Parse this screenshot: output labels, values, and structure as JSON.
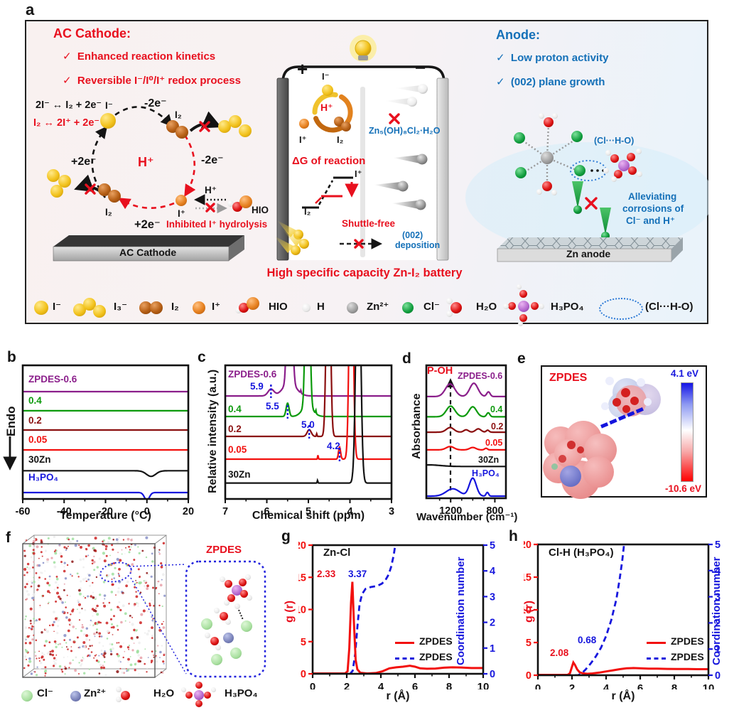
{
  "figure": {
    "panel_a": {
      "label": "a",
      "check": "✓",
      "cathode_title": "AC Cathode:",
      "cathode_point1": "Enhanced reaction kinetics",
      "cathode_point2": "Reversible I⁻/I⁰/I⁺ redox process",
      "eq_black": "2I⁻ ↔ I₂ + 2e⁻",
      "eq_red": "I₂ ↔ 2I⁺ + 2e⁻",
      "minus2e_top": "-2e⁻",
      "minus2e_right": "-2e⁻",
      "plus2e_left": "+2e⁻",
      "plus2e_bottom": "+2e⁻",
      "h_plus_center": "H⁺",
      "i_minus": "I⁻",
      "i2_top": "I₂",
      "i2_bottom": "I₂",
      "i_plus": "I⁺",
      "h_plus_small": "H⁺",
      "hio": "HIO",
      "inhibited": "Inhibited I⁺ hydrolysis",
      "cathode_bar": "AC Cathode",
      "battery": {
        "plus": "+",
        "minus": "−",
        "i_minus": "I⁻",
        "h_plus": "H⁺",
        "i_plus": "I⁺",
        "i2": "I₂",
        "zn_salt": "Zn₅(OH)₈Cl₂·H₂O",
        "dg": "ΔG of reaction",
        "dg_iplus": "I⁺",
        "dg_i2": "I₂",
        "shuttle": "Shuttle-free",
        "dep1": "(002)",
        "dep2": "deposition",
        "caption": "High specific capacity Zn-I₂ battery"
      },
      "anode_title": "Anode:",
      "anode_point1": "Low proton activity",
      "anode_point2": "(002) plane growth",
      "cl_h_o": "(Cl···H-O)",
      "allev1": "Alleviating",
      "allev2": "corrosions of",
      "allev3": "Cl⁻ and H⁺",
      "anode_bar": "Zn anode",
      "legend": [
        {
          "label": "I⁻"
        },
        {
          "label": "I₃⁻"
        },
        {
          "label": "I₂"
        },
        {
          "label": "I⁺"
        },
        {
          "label": "HIO"
        },
        {
          "label": "H"
        },
        {
          "label": "Zn²⁺"
        },
        {
          "label": "Cl⁻"
        },
        {
          "label": "H₂O"
        },
        {
          "label": "H₃PO₄"
        },
        {
          "label": "(Cl···H-O)"
        }
      ]
    },
    "panel_b": {
      "label": "b",
      "xlabel": "Temperature (°C)",
      "ylabel": "Endo",
      "chart": {
        "type": "line",
        "xrange": [
          -60,
          20
        ],
        "xticks": [
          "-60",
          "-40",
          "-20",
          "0",
          "20"
        ],
        "series": [
          {
            "label": "ZPDES-0.6",
            "color": "#8b1f8b",
            "offset": 0.197,
            "peaks": []
          },
          {
            "label": "0.4",
            "color": "#0c9a0c",
            "offset": 0.34,
            "peaks": []
          },
          {
            "label": "0.2",
            "color": "#8b0f0f",
            "offset": 0.484,
            "peaks": []
          },
          {
            "label": "0.05",
            "color": "#f2100e",
            "offset": 0.633,
            "peaks": []
          },
          {
            "label": "30Zn",
            "color": "#141414",
            "offset": 0.789,
            "peaks": [
              {
                "c": 2,
                "h": -0.042,
                "w": 3.2
              }
            ]
          },
          {
            "label": "H₃PO₄",
            "color": "#1515dd",
            "offset": 0.952,
            "peaks": [
              {
                "c": 0,
                "h": -0.058,
                "w": 1.7
              }
            ]
          }
        ]
      }
    },
    "panel_c": {
      "label": "c",
      "xlabel": "Chemical shift (ppm)",
      "ylabel": "Relative intensity (a.u.)",
      "chart": {
        "type": "line",
        "xrange": [
          7,
          3
        ],
        "xticks": [
          "7",
          "6",
          "5",
          "4",
          "3"
        ],
        "series": [
          {
            "label": "ZPDES-0.6",
            "color": "#8b1f8b",
            "offset": 0.229,
            "peaks": [
              {
                "c": 5.45,
                "h": 2,
                "w": 0.065
              },
              {
                "c": 5.45,
                "h": 0.1,
                "w": 0.22
              },
              {
                "c": 5.9,
                "h": 0.05,
                "w": 0.1
              },
              {
                "c": 5.18,
                "h": 0.02,
                "w": 0.012
              }
            ]
          },
          {
            "label": "0.4",
            "color": "#0c9a0c",
            "offset": 0.383,
            "peaks": [
              {
                "c": 5.02,
                "h": 2,
                "w": 0.06
              },
              {
                "c": 5.02,
                "h": 0.08,
                "w": 0.18
              },
              {
                "c": 5.5,
                "h": 0.1,
                "w": 0.05
              },
              {
                "c": 4.82,
                "h": 0.025,
                "w": 0.012
              }
            ]
          },
          {
            "label": "0.2",
            "color": "#8b0f0f",
            "offset": 0.532,
            "peaks": [
              {
                "c": 4.52,
                "h": 2,
                "w": 0.06
              },
              {
                "c": 4.98,
                "h": 0.05,
                "w": 0.07
              },
              {
                "c": 4.8,
                "h": 0.02,
                "w": 0.012
              }
            ]
          },
          {
            "label": "0.05",
            "color": "#f2100e",
            "offset": 0.702,
            "peaks": [
              {
                "c": 3.97,
                "h": 2,
                "w": 0.062
              },
              {
                "c": 4.25,
                "h": 0.09,
                "w": 0.035
              },
              {
                "c": 4.77,
                "h": 0.03,
                "w": 0.012
              }
            ]
          },
          {
            "label": "30Zn",
            "color": "#141414",
            "offset": 0.881,
            "peaks": [
              {
                "c": 3.8,
                "h": 2,
                "w": 0.075
              },
              {
                "c": 4.78,
                "h": 0.02,
                "w": 0.012
              }
            ]
          }
        ],
        "annotations": [
          {
            "text": "5.9",
            "x": 5.9,
            "series": 0
          },
          {
            "text": "5.5",
            "x": 5.5,
            "series": 1
          },
          {
            "text": "5.0",
            "x": 4.98,
            "series": 2
          },
          {
            "text": "4.2",
            "x": 4.25,
            "series": 3
          }
        ]
      }
    },
    "panel_d": {
      "label": "d",
      "xlabel": "Wavenumber (cm⁻¹)",
      "ylabel": "Absorbance",
      "peak_label": "P-OH",
      "chart": {
        "type": "line",
        "xrange": [
          1420,
          700
        ],
        "xticks": [
          "1200",
          "800"
        ],
        "series": [
          {
            "label": "ZPDES-0.6",
            "color": "#8b1f8b",
            "offset": 0.235,
            "peaks": [
              {
                "c": 1205,
                "h": 0.095,
                "w": 60
              },
              {
                "c": 990,
                "h": 0.1,
                "w": 52
              },
              {
                "c": 858,
                "h": 0.035,
                "w": 22
              }
            ]
          },
          {
            "label": "0.4",
            "color": "#0c9a0c",
            "offset": 0.387,
            "peaks": [
              {
                "c": 1200,
                "h": 0.08,
                "w": 55
              },
              {
                "c": 1000,
                "h": 0.075,
                "w": 48
              },
              {
                "c": 860,
                "h": 0.03,
                "w": 20
              }
            ]
          },
          {
            "label": "0.2",
            "color": "#8b0f0f",
            "offset": 0.503,
            "peaks": [
              {
                "c": 1205,
                "h": 0.035,
                "w": 48
              },
              {
                "c": 1060,
                "h": 0.018,
                "w": 30
              },
              {
                "c": 950,
                "h": 0.025,
                "w": 35
              },
              {
                "c": 865,
                "h": 0.015,
                "w": 18
              }
            ]
          },
          {
            "label": "0.05",
            "color": "#f2100e",
            "offset": 0.636,
            "peaks": [
              {
                "c": 1205,
                "h": 0.025,
                "w": 50
              },
              {
                "c": 1000,
                "h": 0.018,
                "w": 40
              },
              {
                "c": 880,
                "h": 0.012,
                "w": 18
              }
            ]
          },
          {
            "label": "30Zn",
            "color": "#141414",
            "offset": 0.761,
            "peaks": [
              {
                "c": 1400,
                "h": 0.012,
                "w": 150
              }
            ]
          },
          {
            "label": "H₃PO₄",
            "color": "#1515dd",
            "offset": 0.984,
            "peaks": [
              {
                "c": 1180,
                "h": 0.055,
                "w": 85
              },
              {
                "c": 1000,
                "h": 0.135,
                "w": 45
              },
              {
                "c": 868,
                "h": 0.028,
                "w": 16
              }
            ]
          }
        ]
      }
    },
    "panel_e": {
      "label": "e",
      "title": "ZPDES",
      "cbar_max": "4.1 eV",
      "cbar_min": "-10.6 eV"
    },
    "panel_f": {
      "label": "f",
      "callout": "ZPDES",
      "legend": [
        {
          "label": "Cl⁻"
        },
        {
          "label": "Zn²⁺"
        },
        {
          "label": "H₂O"
        },
        {
          "label": "H₃PO₄"
        }
      ]
    },
    "panel_g": {
      "label": "g",
      "title": "Zn-Cl",
      "xlabel": "r (Å)",
      "ylabel": "g (r)",
      "y2label": "Coordination number",
      "ann_peak": "2.33",
      "ann_cn": "3.37",
      "legend_rdf": "ZPDES",
      "legend_cn": "ZPDES",
      "chart": {
        "type": "line",
        "xrange": [
          0,
          10
        ],
        "yrange": [
          0,
          20
        ],
        "y2range": [
          0,
          5
        ],
        "xticks": [
          "0",
          "2",
          "4",
          "6",
          "8",
          "10"
        ],
        "yticks": [
          "0",
          "5",
          "10",
          "15",
          "20"
        ],
        "y2ticks": [
          "0",
          "1",
          "2",
          "3",
          "4",
          "5"
        ],
        "g_r": [
          [
            0,
            0.05
          ],
          [
            1.9,
            0.05
          ],
          [
            2.05,
            0.4
          ],
          [
            2.15,
            4
          ],
          [
            2.25,
            11
          ],
          [
            2.33,
            14.3
          ],
          [
            2.42,
            8
          ],
          [
            2.52,
            2.2
          ],
          [
            2.62,
            0.7
          ],
          [
            2.8,
            0.15
          ],
          [
            3.2,
            0.05
          ],
          [
            3.7,
            0.12
          ],
          [
            4.1,
            0.4
          ],
          [
            4.5,
            0.85
          ],
          [
            4.9,
            1.0
          ],
          [
            5.3,
            1.1
          ],
          [
            5.7,
            1.25
          ],
          [
            6.0,
            1.1
          ],
          [
            6.3,
            0.85
          ],
          [
            6.7,
            0.78
          ],
          [
            7.2,
            0.82
          ],
          [
            7.7,
            0.95
          ],
          [
            8.2,
            1.0
          ],
          [
            8.7,
            0.98
          ],
          [
            9.3,
            0.9
          ],
          [
            10,
            0.9
          ]
        ],
        "cn": [
          [
            0,
            0
          ],
          [
            2.2,
            0
          ],
          [
            2.35,
            0.12
          ],
          [
            2.5,
            0.8
          ],
          [
            2.62,
            1.8
          ],
          [
            2.75,
            2.7
          ],
          [
            2.9,
            3.1
          ],
          [
            3.1,
            3.3
          ],
          [
            3.4,
            3.37
          ],
          [
            3.8,
            3.42
          ],
          [
            4.05,
            3.5
          ],
          [
            4.25,
            3.62
          ],
          [
            4.45,
            3.85
          ],
          [
            4.6,
            4.15
          ],
          [
            4.75,
            4.6
          ],
          [
            4.88,
            5.15
          ]
        ]
      }
    },
    "panel_h": {
      "label": "h",
      "title": "Cl-H (H₃PO₄)",
      "xlabel": "r (Å)",
      "ylabel": "g (r)",
      "y2label": "Coordination number",
      "ann_peak": "2.08",
      "ann_cn": "0.68",
      "legend_rdf": "ZPDES",
      "legend_cn": "ZPDES",
      "chart": {
        "type": "line",
        "xrange": [
          0,
          10
        ],
        "yrange": [
          0,
          20
        ],
        "y2range": [
          0,
          5
        ],
        "xticks": [
          "0",
          "2",
          "4",
          "6",
          "8",
          "10"
        ],
        "yticks": [
          "0",
          "5",
          "10",
          "15",
          "20"
        ],
        "y2ticks": [
          "0",
          "1",
          "2",
          "3",
          "4",
          "5"
        ],
        "g_r": [
          [
            0,
            0.05
          ],
          [
            1.75,
            0.05
          ],
          [
            1.88,
            0.3
          ],
          [
            2.0,
            1.3
          ],
          [
            2.08,
            1.95
          ],
          [
            2.18,
            1.55
          ],
          [
            2.3,
            0.9
          ],
          [
            2.45,
            0.45
          ],
          [
            2.65,
            0.28
          ],
          [
            2.9,
            0.22
          ],
          [
            3.2,
            0.27
          ],
          [
            3.6,
            0.4
          ],
          [
            4.0,
            0.58
          ],
          [
            4.4,
            0.75
          ],
          [
            4.8,
            0.92
          ],
          [
            5.2,
            1.05
          ],
          [
            5.6,
            1.1
          ],
          [
            6.0,
            1.07
          ],
          [
            6.5,
            1.0
          ],
          [
            7.0,
            1.0
          ],
          [
            7.6,
            0.97
          ],
          [
            8.2,
            0.95
          ],
          [
            8.8,
            0.95
          ],
          [
            9.4,
            0.92
          ],
          [
            10,
            0.92
          ]
        ],
        "cn": [
          [
            0,
            0
          ],
          [
            2.35,
            0
          ],
          [
            2.55,
            0.06
          ],
          [
            2.8,
            0.22
          ],
          [
            3.1,
            0.45
          ],
          [
            3.4,
            0.72
          ],
          [
            3.7,
            1.05
          ],
          [
            4.0,
            1.5
          ],
          [
            4.3,
            2.1
          ],
          [
            4.6,
            2.9
          ],
          [
            4.8,
            3.7
          ],
          [
            4.95,
            4.4
          ],
          [
            5.08,
            5.15
          ]
        ]
      }
    }
  },
  "chart_data": [
    {
      "id": "b",
      "type": "line",
      "xlabel": "Temperature (°C)",
      "ylabel": "Endo",
      "xrange": [
        -60,
        20
      ],
      "series": [
        "ZPDES-0.6",
        "0.4",
        "0.2",
        "0.05",
        "30Zn",
        "H₃PO₄"
      ],
      "note": "flat DSC traces; endothermic dips only for 30Zn (~2 °C) and H₃PO₄ (~0 °C)"
    },
    {
      "id": "c",
      "type": "line",
      "xlabel": "Chemical shift (ppm)",
      "ylabel": "Relative intensity (a.u.)",
      "xrange": [
        7,
        3
      ],
      "series": [
        "ZPDES-0.6",
        "0.4",
        "0.2",
        "0.05",
        "30Zn"
      ],
      "main_peaks_ppm": [
        5.45,
        5.02,
        4.52,
        3.97,
        3.8
      ],
      "shoulder_peaks_ppm": [
        5.9,
        5.5,
        5.0,
        4.2
      ]
    },
    {
      "id": "d",
      "type": "line",
      "xlabel": "Wavenumber (cm⁻¹)",
      "ylabel": "Absorbance",
      "xrange": [
        1420,
        700
      ],
      "series": [
        "ZPDES-0.6",
        "0.4",
        "0.2",
        "0.05",
        "30Zn",
        "H₃PO₄"
      ],
      "marked_band": "P-OH at ~1200 cm⁻¹"
    },
    {
      "id": "e",
      "type": "heatmap",
      "title": "ZPDES ESP map",
      "scale_max_eV": 4.1,
      "scale_min_eV": -10.6
    },
    {
      "id": "g",
      "type": "line",
      "title": "Zn-Cl",
      "xlabel": "r (Å)",
      "ylabel": "g (r)",
      "y2label": "Coordination number",
      "first_peak": {
        "r": 2.33,
        "g": 14.3
      },
      "cn_plateau": 3.37,
      "legend": [
        "ZPDES",
        "ZPDES"
      ]
    },
    {
      "id": "h",
      "type": "line",
      "title": "Cl-H (H₃PO₄)",
      "xlabel": "r (Å)",
      "ylabel": "g (r)",
      "y2label": "Coordination number",
      "first_peak": {
        "r": 2.08,
        "g": 2.0
      },
      "cn_value": 0.68,
      "legend": [
        "ZPDES",
        "ZPDES"
      ]
    }
  ]
}
